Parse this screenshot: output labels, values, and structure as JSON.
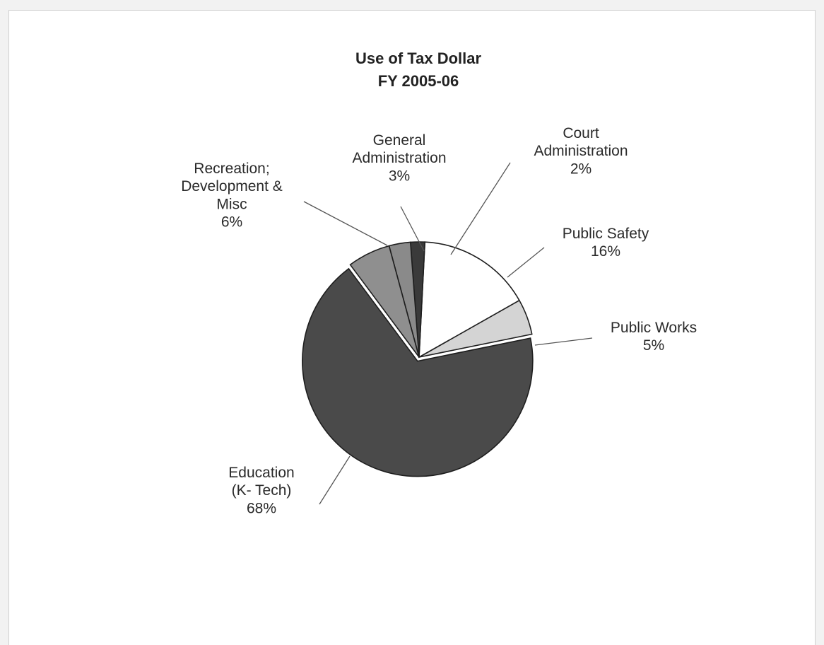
{
  "chart_data": {
    "type": "pie",
    "title": "Use of Tax Dollar",
    "subtitle": "FY 2005-06",
    "slices": [
      {
        "lines": [
          "Public Works"
        ],
        "pct": "5%",
        "value": 5,
        "color": "#d4d4d4"
      },
      {
        "lines": [
          "Public Safety"
        ],
        "pct": "16%",
        "value": 16,
        "color": "#ffffff"
      },
      {
        "lines": [
          "Court",
          "Administration"
        ],
        "pct": "2%",
        "value": 2,
        "color": "#3a3a3a"
      },
      {
        "lines": [
          "General",
          "Administration"
        ],
        "pct": "3%",
        "value": 3,
        "color": "#8a8a8a"
      },
      {
        "lines": [
          "Recreation;",
          "Development &",
          "Misc"
        ],
        "pct": "6%",
        "value": 6,
        "color": "#8f8f8f"
      },
      {
        "lines": [
          "Education",
          "(K- Tech)"
        ],
        "pct": "68%",
        "value": 68,
        "color": "#4a4a4a"
      }
    ]
  }
}
